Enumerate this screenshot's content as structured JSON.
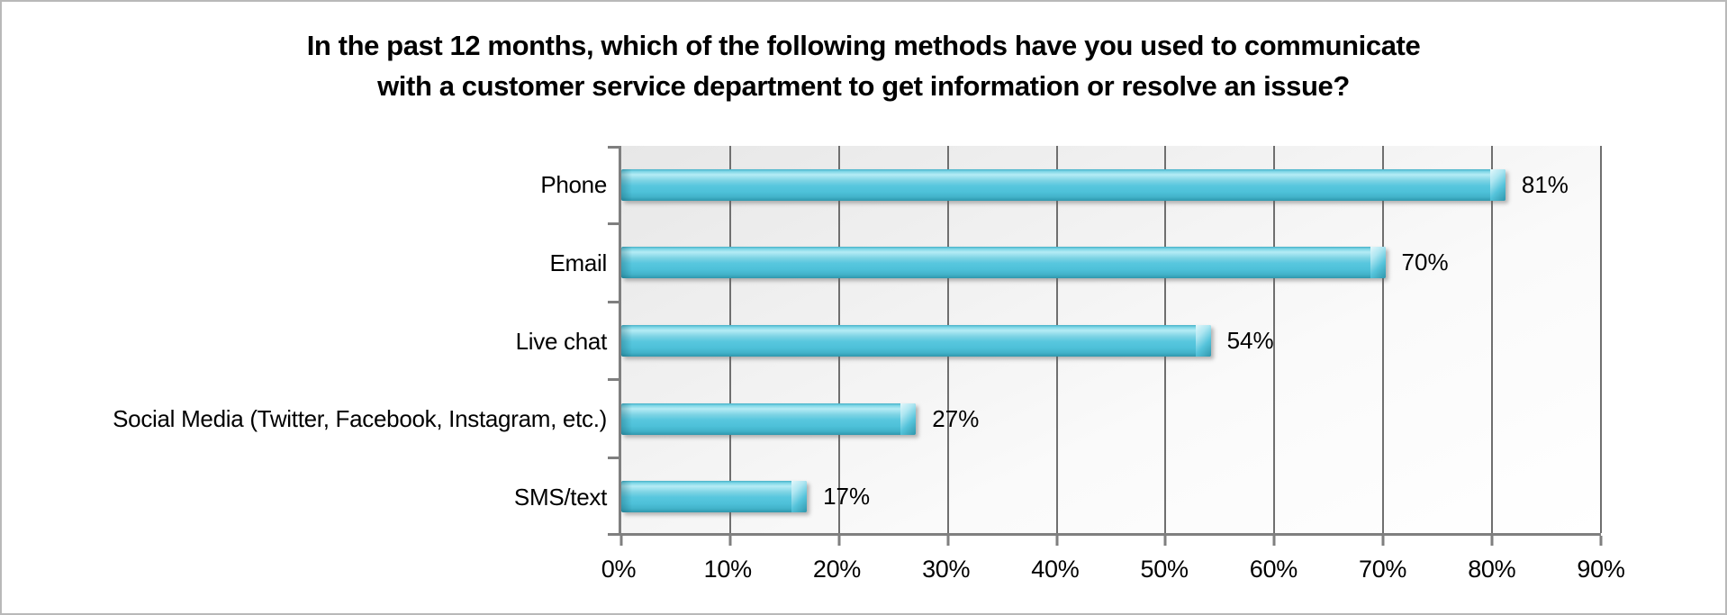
{
  "title": {
    "line1": "In the past 12 months, which of the following methods have you used to communicate",
    "line2": "with a customer service department to get information or resolve an issue?"
  },
  "chart_data": {
    "type": "bar",
    "orientation": "horizontal",
    "title": "In the past 12 months, which of the following methods have you used to communicate with a customer service department to get information or resolve an issue?",
    "categories": [
      "Phone",
      "Email",
      "Live chat",
      "Social Media (Twitter, Facebook, Instagram, etc.)",
      "SMS/text"
    ],
    "values": [
      81,
      70,
      54,
      27,
      17
    ],
    "value_labels": [
      "81%",
      "70%",
      "54%",
      "27%",
      "17%"
    ],
    "x_tick_labels": [
      "0%",
      "10%",
      "20%",
      "30%",
      "40%",
      "50%",
      "60%",
      "70%",
      "80%",
      "90%"
    ],
    "x_tick_values": [
      0,
      10,
      20,
      30,
      40,
      50,
      60,
      70,
      80,
      90
    ],
    "xlim": [
      0,
      90
    ],
    "xlabel": "",
    "ylabel": "",
    "grid": "vertical",
    "legend": "none"
  },
  "colors": {
    "bar_main": "#4EC1D9",
    "bar_highlight": "#B5ECF5",
    "bar_dark": "#2F97AD",
    "gridline": "#6F6F6F",
    "axis": "#7F7F7F",
    "text": "#000000",
    "canvas_border": "#B9B9B9",
    "plot_bg_top": "#E7E7E7",
    "plot_bg_bottom": "#FFFFFF"
  }
}
